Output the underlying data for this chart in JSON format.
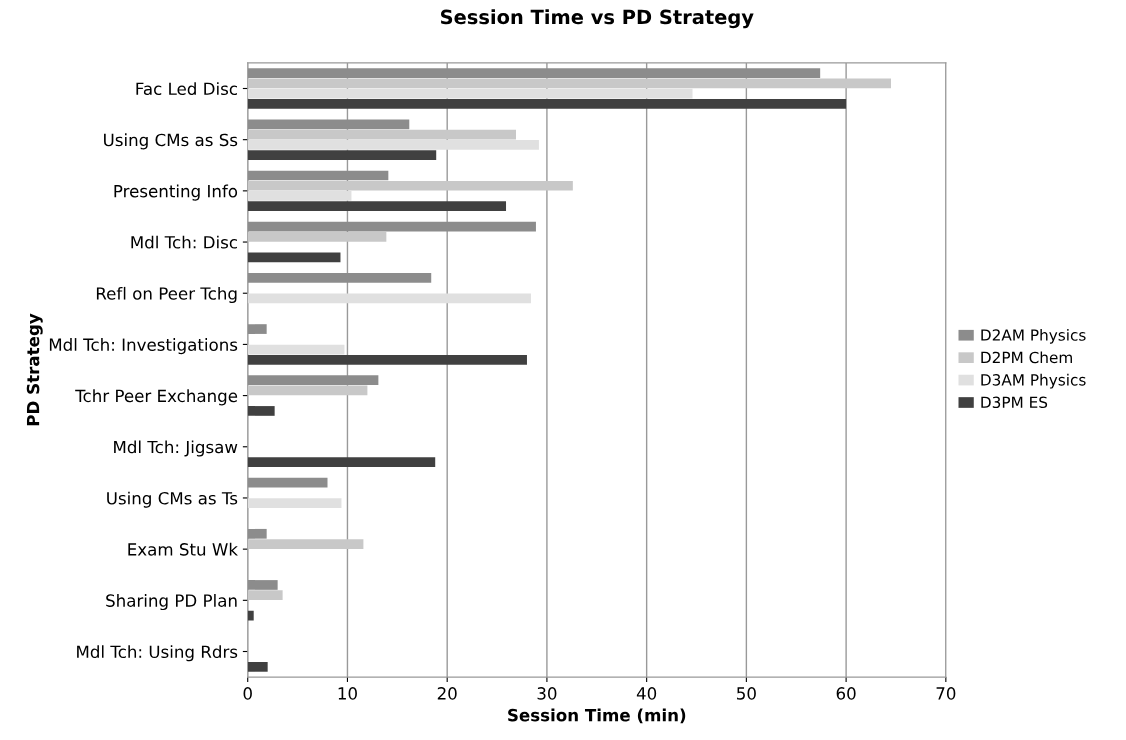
{
  "chart_data": {
    "type": "bar",
    "orientation": "horizontal",
    "title": "Session Time vs PD Strategy",
    "xlabel": "Session Time (min)",
    "ylabel": "PD Strategy",
    "categories": [
      "Fac Led Disc",
      "Using CMs as Ss",
      "Presenting Info",
      "Mdl Tch: Disc",
      "Refl on Peer Tchg",
      "Mdl Tch: Investigations",
      "Tchr Peer Exchange",
      "Mdl Tch: Jigsaw",
      "Using CMs as Ts",
      "Exam Stu Wk",
      "Sharing PD Plan",
      "Mdl Tch: Using Rdrs"
    ],
    "series": [
      {
        "name": "D2AM Physics",
        "color": "#8c8c8c",
        "values": [
          57.4,
          16.2,
          14.1,
          28.9,
          18.4,
          1.9,
          13.1,
          null,
          8.0,
          1.9,
          3.0,
          null
        ]
      },
      {
        "name": "D2PM Chem",
        "color": "#c8c8c8",
        "values": [
          64.5,
          26.9,
          32.6,
          13.9,
          null,
          null,
          12.0,
          null,
          null,
          11.6,
          3.5,
          null
        ]
      },
      {
        "name": "D3AM Physics",
        "color": "#e0e0e0",
        "values": [
          44.6,
          29.2,
          10.4,
          null,
          28.4,
          9.7,
          null,
          null,
          9.4,
          null,
          null,
          null
        ]
      },
      {
        "name": "D3PM ES",
        "color": "#404040",
        "values": [
          60.0,
          18.9,
          25.9,
          9.3,
          null,
          28.0,
          2.7,
          18.8,
          null,
          null,
          0.6,
          2.0
        ]
      }
    ],
    "xlim": [
      0,
      70
    ],
    "xticks": [
      0,
      10,
      20,
      30,
      40,
      50,
      60,
      70
    ],
    "grid": "x",
    "legend": "right"
  }
}
